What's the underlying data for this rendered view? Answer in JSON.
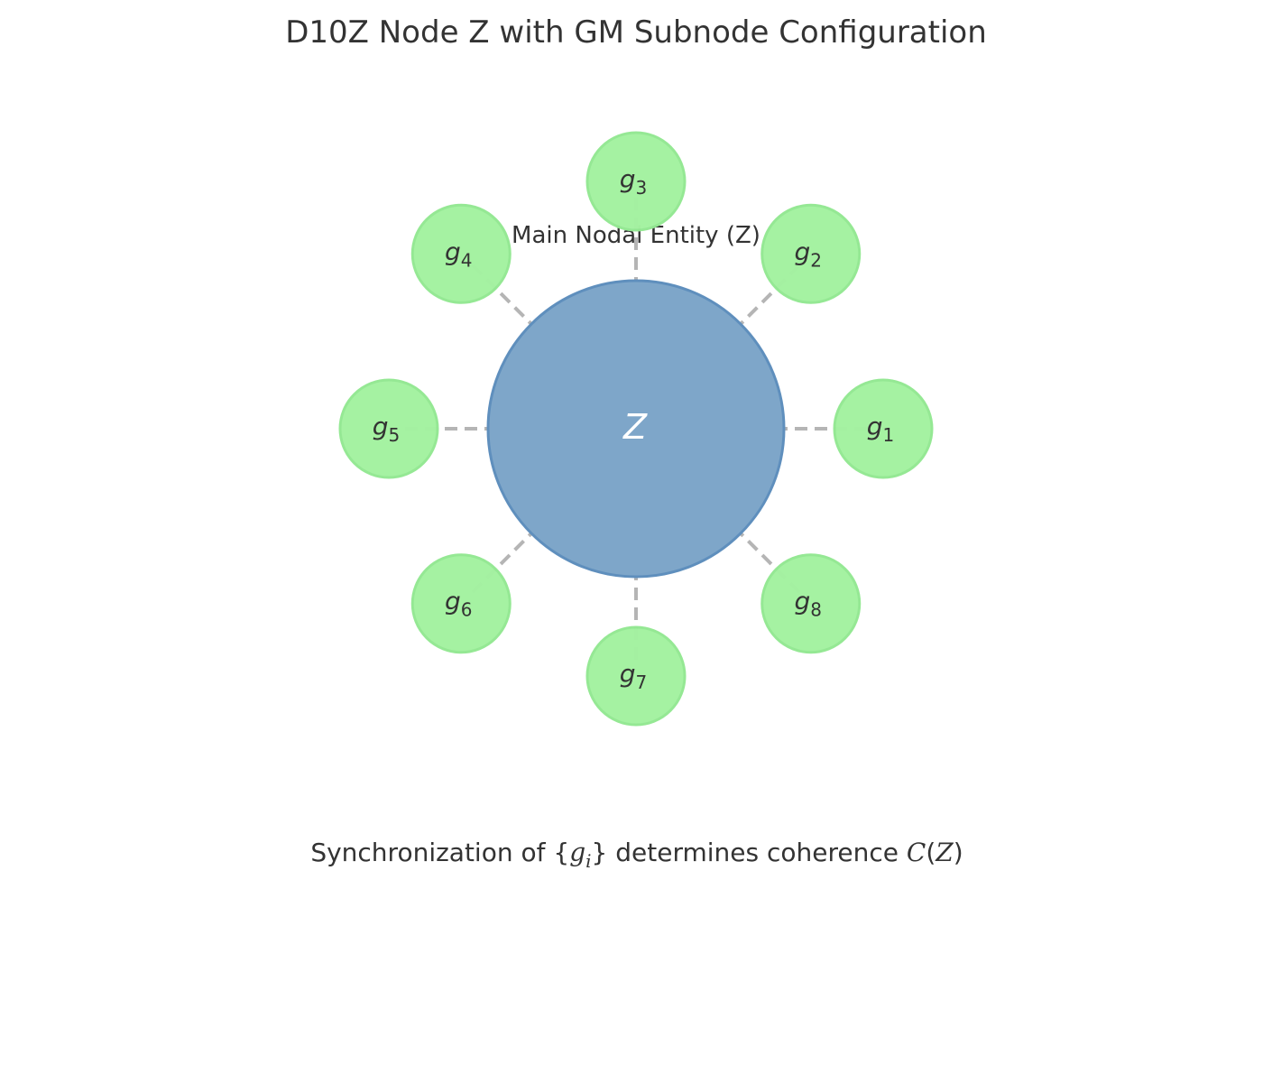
{
  "title": "D10Z Node Z with GM Subnode Configuration",
  "main_node": {
    "label": "Main Nodal Entity (Z)",
    "symbol": "Z",
    "color": "#7ea6c9"
  },
  "subnodes": [
    {
      "base": "g",
      "subscript": "1"
    },
    {
      "base": "g",
      "subscript": "2"
    },
    {
      "base": "g",
      "subscript": "3"
    },
    {
      "base": "g",
      "subscript": "4"
    },
    {
      "base": "g",
      "subscript": "5"
    },
    {
      "base": "g",
      "subscript": "6"
    },
    {
      "base": "g",
      "subscript": "7"
    },
    {
      "base": "g",
      "subscript": "8"
    }
  ],
  "subnode_color": "#a4f2a1",
  "connector_color": "#a8a8a8",
  "caption": {
    "prefix": "Synchronization of {",
    "set_base": "g",
    "set_subscript": "i",
    "middle": "} determines coherence ",
    "function": "C",
    "argument_open": "(",
    "argument": "Z",
    "argument_close": ")"
  }
}
